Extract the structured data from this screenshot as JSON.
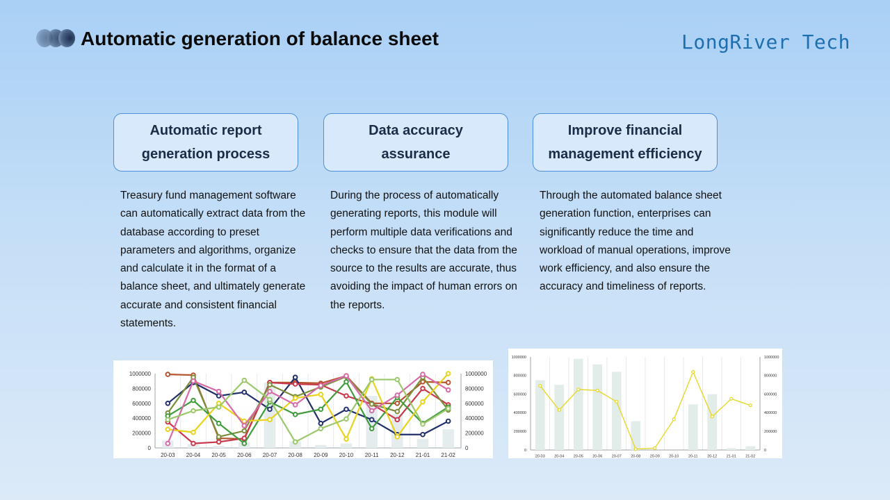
{
  "title": "Automatic generation of balance sheet",
  "brand": "LongRiver Tech",
  "cards": [
    {
      "heading": "Automatic report generation process",
      "text": "Treasury fund management software can automatically extract data from the database according to preset parameters and algorithms, organize and calculate it in the format of a balance sheet, and ultimately generate accurate and consistent financial statements."
    },
    {
      "heading": "Data accuracy assurance",
      "text": "During the process of automatically generating reports, this module will perform multiple data verifications and checks to ensure that the data from the source to the results are accurate, thus avoiding the impact of human errors on the reports."
    },
    {
      "heading": "Improve financial management efficiency",
      "text": "Through the automated balance sheet generation function, enterprises can significantly reduce the time and workload of manual operations, improve work efficiency, and also ensure the accuracy and timeliness of reports."
    }
  ],
  "chart_data": [
    {
      "type": "line",
      "categories": [
        "20-03",
        "20-04",
        "20-05",
        "20-06",
        "20-07",
        "20-08",
        "20-09",
        "20-10",
        "20-11",
        "20-12",
        "21-01",
        "21-02"
      ],
      "y_left_ticks": [
        "1000000",
        "800000",
        "600000",
        "400000",
        "200000",
        "0"
      ],
      "y_right_ticks": [
        "1000000",
        "800000",
        "600000",
        "400000",
        "200000",
        "0"
      ],
      "ylim": [
        0,
        1000000
      ],
      "bars": [
        100000,
        50000,
        30000,
        80000,
        880000,
        90000,
        40000,
        60000,
        700000,
        450000,
        120000,
        250000
      ],
      "series": [
        {
          "color": "#b5532b",
          "values": [
            990000,
            980000,
            130000,
            120000,
            880000,
            880000,
            870000,
            970000,
            600000,
            600000,
            890000,
            880000
          ]
        },
        {
          "color": "#1f2f6b",
          "values": [
            600000,
            880000,
            700000,
            750000,
            520000,
            950000,
            330000,
            520000,
            380000,
            180000,
            180000,
            360000
          ]
        },
        {
          "color": "#c8374a",
          "values": [
            350000,
            60000,
            80000,
            130000,
            880000,
            860000,
            850000,
            700000,
            590000,
            380000,
            800000,
            580000
          ]
        },
        {
          "color": "#7b8f3a",
          "values": [
            470000,
            950000,
            150000,
            230000,
            850000,
            690000,
            820000,
            960000,
            590000,
            490000,
            950000,
            510000
          ]
        },
        {
          "color": "#3f9b3b",
          "values": [
            430000,
            640000,
            330000,
            60000,
            620000,
            450000,
            520000,
            890000,
            260000,
            680000,
            330000,
            550000
          ]
        },
        {
          "color": "#e9d21b",
          "values": [
            250000,
            210000,
            600000,
            360000,
            380000,
            670000,
            720000,
            120000,
            930000,
            150000,
            620000,
            1000000
          ]
        },
        {
          "color": "#d76aa8",
          "values": [
            60000,
            900000,
            760000,
            300000,
            760000,
            580000,
            840000,
            970000,
            500000,
            710000,
            990000,
            780000
          ]
        },
        {
          "color": "#9bc86a",
          "values": [
            380000,
            500000,
            550000,
            910000,
            650000,
            80000,
            260000,
            390000,
            920000,
            920000,
            320000,
            530000
          ]
        }
      ]
    },
    {
      "type": "bar",
      "categories": [
        "20-03",
        "20-04",
        "20-05",
        "20-06",
        "20-07",
        "20-08",
        "20-09",
        "20-10",
        "20-11",
        "20-12",
        "21-01",
        "21-02"
      ],
      "y_left_ticks": [
        "1000000",
        "800000",
        "600000",
        "400000",
        "200000",
        "0"
      ],
      "y_right_ticks": [
        "1000000",
        "800000",
        "600000",
        "400000",
        "200000",
        "0"
      ],
      "ylim": [
        0,
        1000000
      ],
      "bars": [
        750000,
        700000,
        980000,
        920000,
        840000,
        310000,
        0,
        0,
        490000,
        600000,
        20000,
        40000
      ],
      "line": [
        690000,
        430000,
        650000,
        640000,
        520000,
        10000,
        20000,
        330000,
        840000,
        360000,
        550000,
        480000
      ],
      "bar_color": "#e2ece8",
      "line_color": "#e8d82a"
    }
  ]
}
